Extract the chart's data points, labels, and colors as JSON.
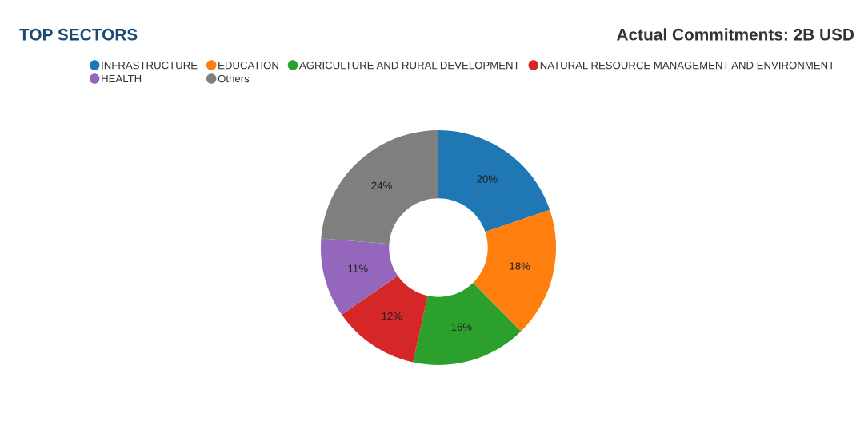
{
  "chart_data": {
    "type": "donut",
    "title": "TOP SECTORS",
    "subtitle": "Actual Commitments: 2B USD",
    "categories": [
      "INFRASTRUCTURE",
      "EDUCATION",
      "AGRICULTURE AND RURAL DEVELOPMENT",
      "NATURAL RESOURCE MANAGEMENT AND ENVIRONMENT",
      "HEALTH",
      "Others"
    ],
    "values": [
      20,
      18,
      16,
      12,
      11,
      24
    ],
    "colors": [
      "#1f77b4",
      "#ff7f0e",
      "#2ca02c",
      "#d62728",
      "#9467bd",
      "#7f7f7f"
    ],
    "value_labels": [
      "20%",
      "18%",
      "16%",
      "12%",
      "11%",
      "24%"
    ],
    "legend": "top"
  }
}
